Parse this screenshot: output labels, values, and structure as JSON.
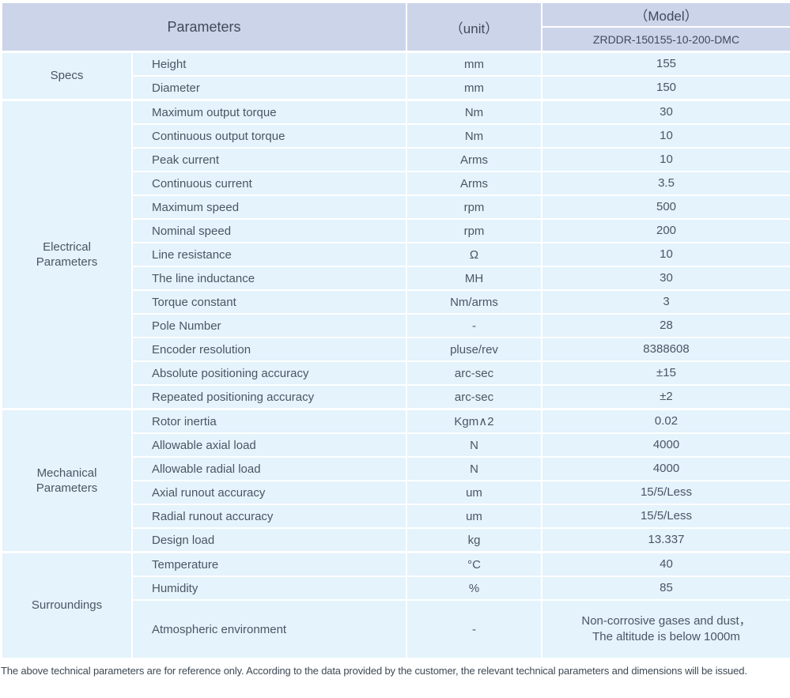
{
  "header": {
    "parameters_label": "Parameters",
    "unit_label": "（unit）",
    "model_label": "（Model）",
    "model_value": "ZRDDR-150155-10-200-DMC"
  },
  "sections": [
    {
      "group": "Specs",
      "rows": [
        {
          "param": "Height",
          "unit": "mm",
          "value": "155"
        },
        {
          "param": "Diameter",
          "unit": "mm",
          "value": "150"
        }
      ]
    },
    {
      "group": "Electrical Parameters",
      "rows": [
        {
          "param": "Maximum output torque",
          "unit": "Nm",
          "value": "30"
        },
        {
          "param": "Continuous output torque",
          "unit": "Nm",
          "value": "10"
        },
        {
          "param": "Peak current",
          "unit": "Arms",
          "value": "10"
        },
        {
          "param": "Continuous current",
          "unit": "Arms",
          "value": "3.5"
        },
        {
          "param": "Maximum speed",
          "unit": "rpm",
          "value": "500"
        },
        {
          "param": "Nominal speed",
          "unit": "rpm",
          "value": "200"
        },
        {
          "param": "Line resistance",
          "unit": "Ω",
          "value": "10"
        },
        {
          "param": "The line inductance",
          "unit": "MH",
          "value": "30"
        },
        {
          "param": "Torque constant",
          "unit": "Nm/arms",
          "value": "3"
        },
        {
          "param": "Pole Number",
          "unit": "-",
          "value": "28"
        },
        {
          "param": "Encoder resolution",
          "unit": "pluse/rev",
          "value": "8388608"
        },
        {
          "param": "Absolute positioning accuracy",
          "unit": "arc-sec",
          "value": "±15"
        },
        {
          "param": "Repeated positioning accuracy",
          "unit": "arc-sec",
          "value": "±2"
        }
      ]
    },
    {
      "group": "Mechanical Parameters",
      "rows": [
        {
          "param": "Rotor inertia",
          "unit": "Kgm∧2",
          "value": "0.02"
        },
        {
          "param": "Allowable axial load",
          "unit": "N",
          "value": "4000"
        },
        {
          "param": "Allowable radial load",
          "unit": "N",
          "value": "4000"
        },
        {
          "param": "Axial runout accuracy",
          "unit": "um",
          "value": "15/5/Less"
        },
        {
          "param": "Radial runout accuracy",
          "unit": "um",
          "value": "15/5/Less"
        },
        {
          "param": "Design load",
          "unit": "kg",
          "value": "13.337"
        }
      ]
    },
    {
      "group": "Surroundings",
      "rows": [
        {
          "param": "Temperature",
          "unit": "°C",
          "value": "40"
        },
        {
          "param": "Humidity",
          "unit": "%",
          "value": "85"
        },
        {
          "param": "Atmospheric environment",
          "unit": "-",
          "value": "Non-corrosive gases and dust，\nThe altitude is below 1000m"
        }
      ]
    }
  ],
  "footer": {
    "note": "The above technical parameters are for reference only. According to the data provided by the customer, the relevant technical parameters and dimensions will be issued."
  },
  "colors": {
    "header_bg": "#ccd4ea",
    "cell_bg": "#e4f3fc",
    "text": "#4b5663",
    "header_text": "#3f4a5a",
    "footer_text": "#3d4954"
  }
}
